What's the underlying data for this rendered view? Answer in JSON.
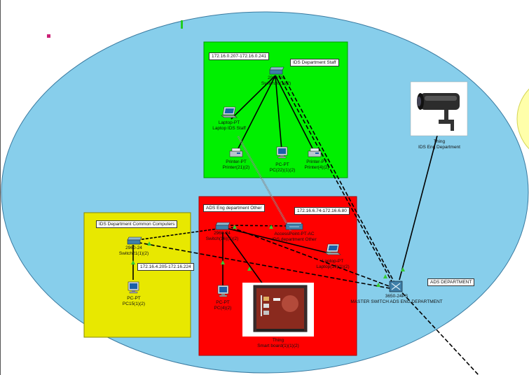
{
  "zones": {
    "staff_zone": {
      "label": "IDS Department Staff",
      "ip_range": "172.16.0.207-172.16.0.241"
    },
    "other_zone": {
      "label": "ADS Eng department Other",
      "ip_range": "172.16.6.74-172.16.6.80"
    },
    "common_zone": {
      "label": "IDS Department Common Computers",
      "ip_range": "172.16.4.205-172.16.224"
    },
    "ads_department": {
      "label": "ADS DEPARTMENT"
    }
  },
  "devices": {
    "switch_staff": {
      "model": "2960-24",
      "name": "Switch30(1)(2)"
    },
    "laptop_staff": {
      "model": "Laptop-PT",
      "name": "Laptop IDS Staff"
    },
    "printer_21": {
      "model": "Printer-PT",
      "name": "Printer(21)(2)"
    },
    "pc_22": {
      "model": "PC-PT",
      "name": "PC(22)(1)(2)"
    },
    "printer_4": {
      "model": "Printer-PT",
      "name": "Printer(4)(2)"
    },
    "camera": {
      "model": "Thing",
      "name": "IDS Eng Department"
    },
    "switch_other": {
      "model": "2960-24",
      "name": "Switch(16)(1)(2)"
    },
    "access_point": {
      "model": "AccessPoint-PT-AC",
      "name": "IDS department Other"
    },
    "laptop_other": {
      "model": "Laptop-PT",
      "name": "Laptop(19)(1)(2)"
    },
    "pc_other": {
      "model": "PC-PT",
      "name": "PC(4)(2)"
    },
    "smartboard": {
      "model": "Thing",
      "name": "Smart board(1)(1)(2)"
    },
    "switch_common": {
      "model": "2960-24",
      "name": "Switch21(1)(2)"
    },
    "pc_15": {
      "model": "PC-PT",
      "name": "PC15(1)(2)"
    },
    "master_switch": {
      "model": "3650-24PS",
      "name": "MASTER SWITCH ADS ENG DEPARTMENT"
    }
  },
  "colors": {
    "area": "#87ceeb",
    "staff_zone": "#00f000",
    "other_zone": "#ff0000",
    "common_zone": "#e8e800",
    "link": "#000000",
    "port_up": "#33cc33"
  },
  "icons": [
    "switch-icon",
    "laptop-icon",
    "printer-icon",
    "pc-icon",
    "camera-icon",
    "access-point-icon",
    "smartboard-icon",
    "multilayer-switch-icon"
  ]
}
